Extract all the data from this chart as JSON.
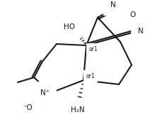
{
  "background": "#ffffff",
  "line_color": "#1a1a1a",
  "figsize": [
    2.12,
    1.72
  ],
  "dpi": 100,
  "xlim": [
    0,
    212
  ],
  "ylim": [
    0,
    172
  ]
}
